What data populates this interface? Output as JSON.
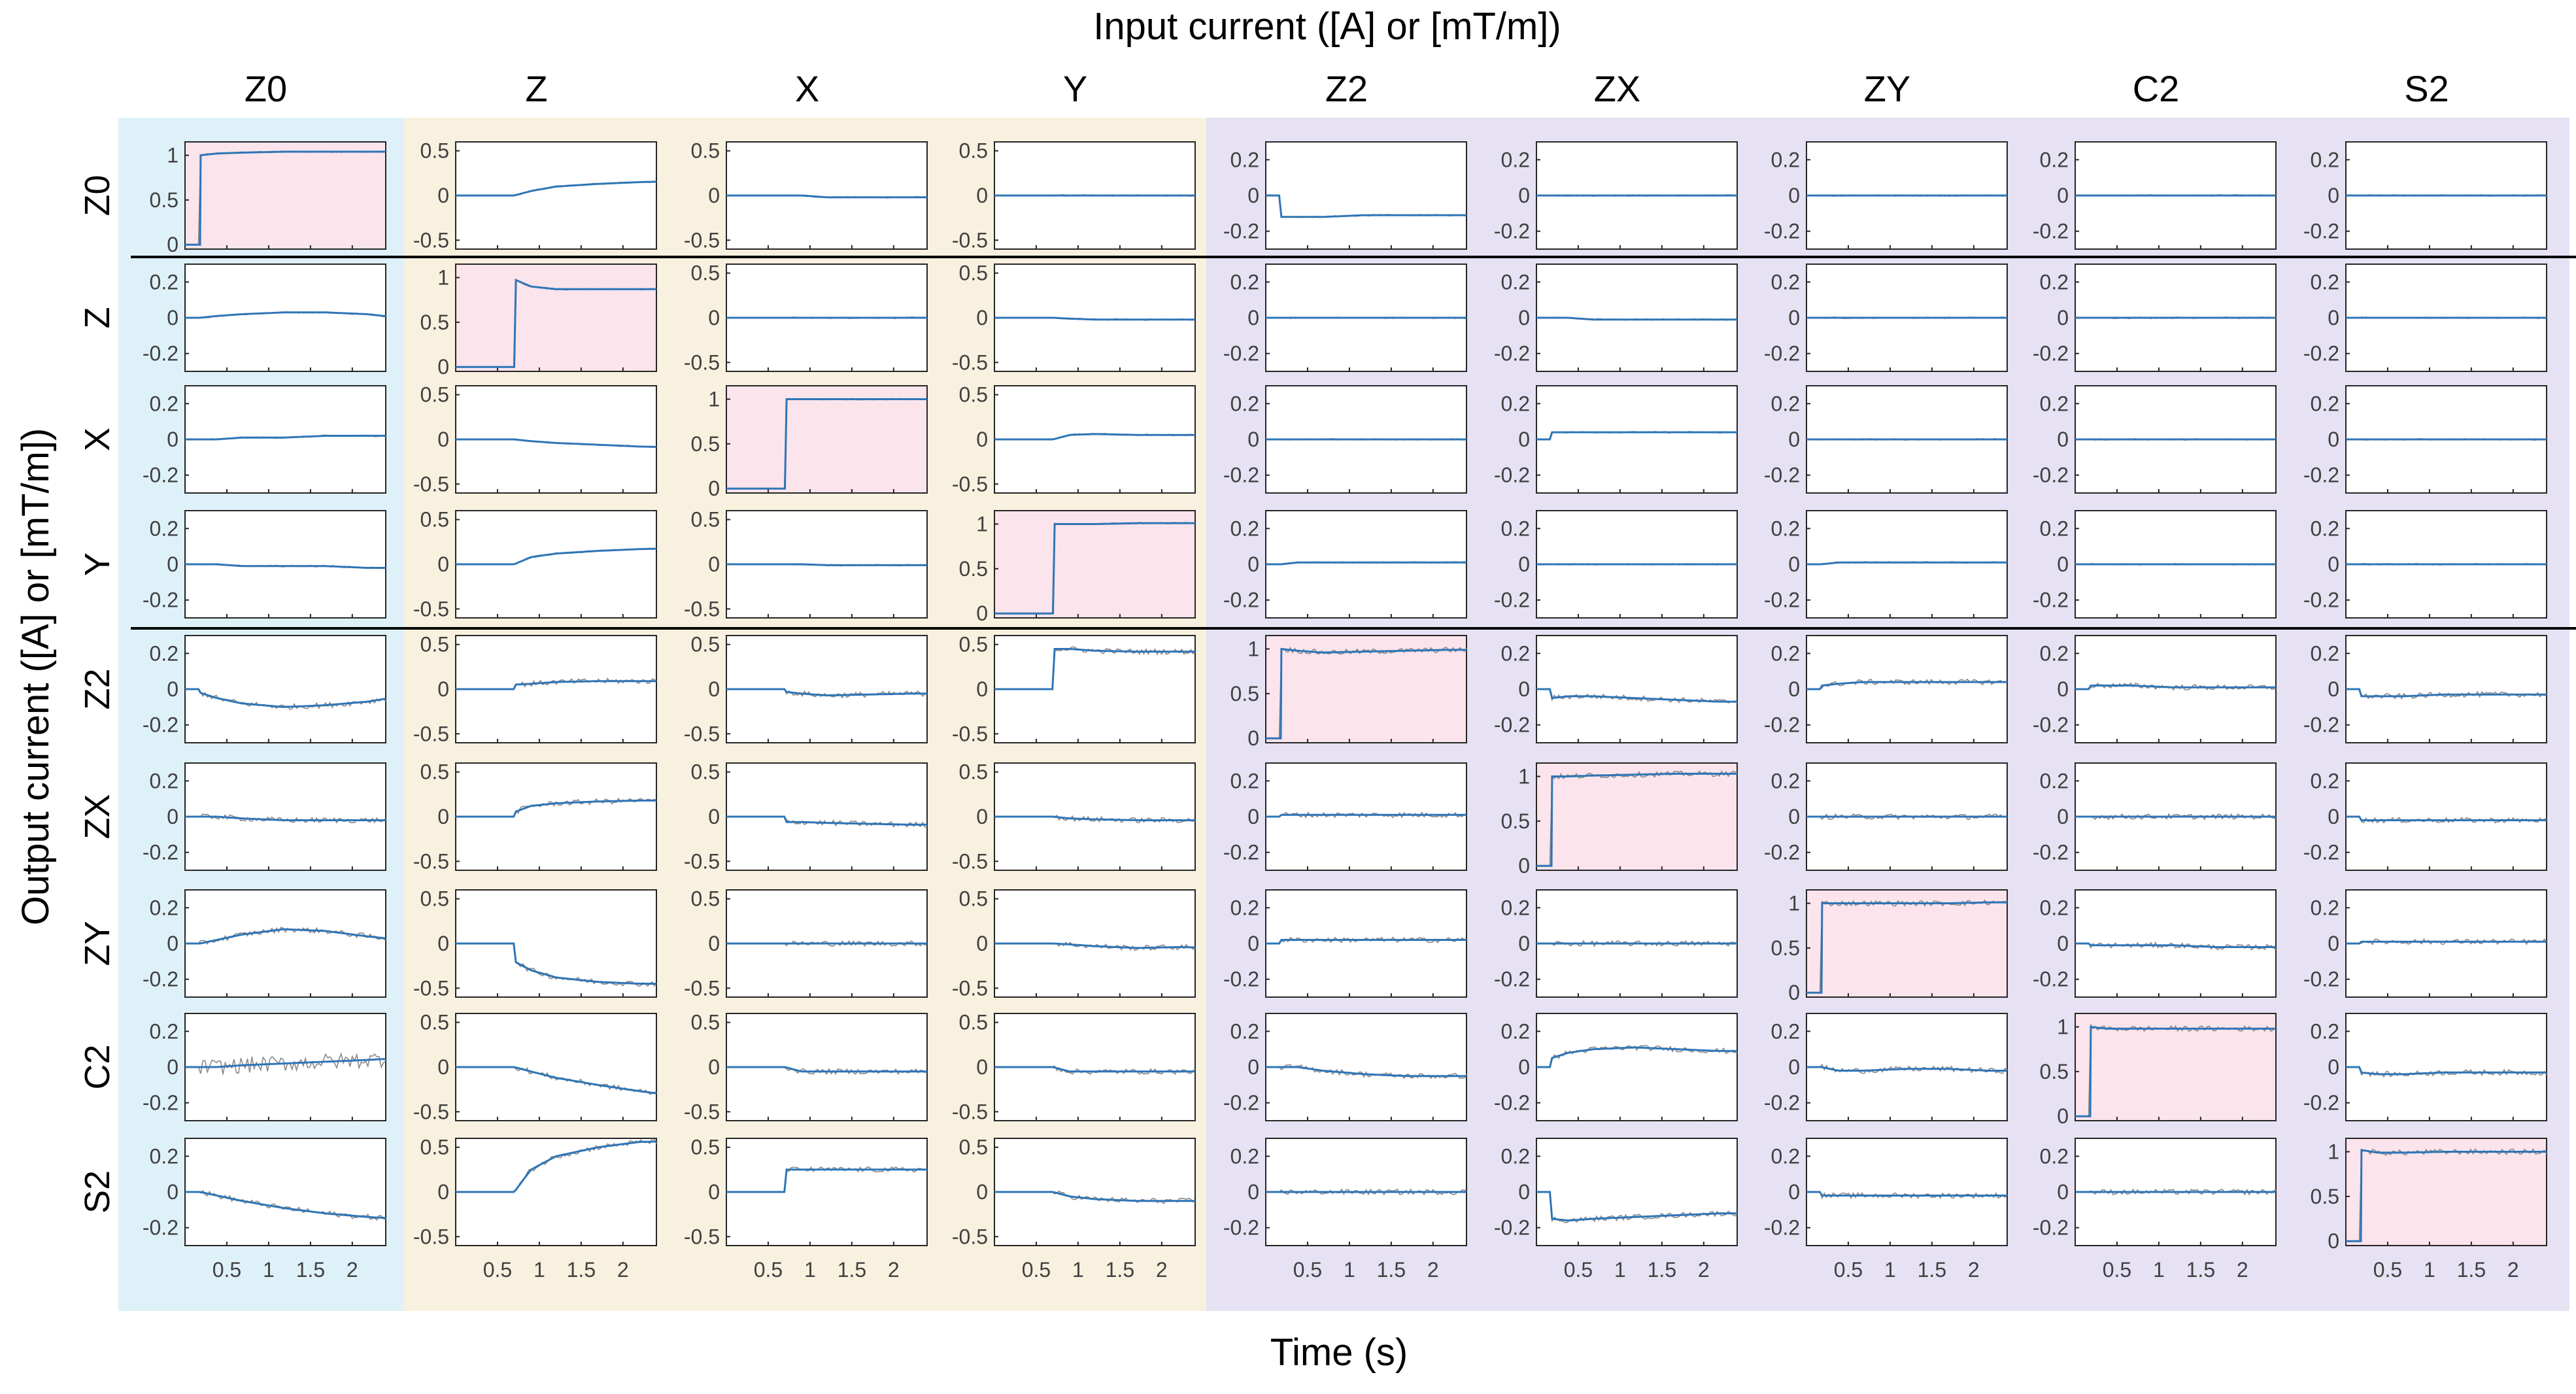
{
  "figure": {
    "title": "Input current ([A] or [mT/m])",
    "xlabel": "Time (s)",
    "ylabel": "Output current  ([A] or [mT/m])"
  },
  "colors": {
    "group_z0": "#dff1f8",
    "group_linear": "#f8f1df",
    "group_second_order": "#e6e2f3",
    "diagonal_fill": "#fbe4ec",
    "fit_line": "#2e75b6",
    "raw_line": "#8a8a8a"
  },
  "chart_data": {
    "type": "line",
    "layout": "9x9 small multiples",
    "columns": [
      "Z0",
      "Z",
      "X",
      "Y",
      "Z2",
      "ZX",
      "ZY",
      "C2",
      "S2"
    ],
    "rows": [
      "Z0",
      "Z",
      "X",
      "Y",
      "Z2",
      "ZX",
      "ZY",
      "C2",
      "S2"
    ],
    "x_ticks": [
      0.5,
      1,
      1.5,
      2
    ],
    "xlim": [
      0,
      2.4
    ],
    "y_ticks": {
      "diagonal": [
        0,
        0.5,
        1
      ],
      "pm0_2": [
        -0.2,
        0,
        0.2
      ],
      "pm0_5": [
        -0.5,
        0,
        0.5
      ]
    },
    "ylim": {
      "diagonal": [
        -0.05,
        1.15
      ],
      "pm0_2": [
        -0.3,
        0.3
      ],
      "pm0_5": [
        -0.6,
        0.6
      ]
    },
    "tick_labels": {
      "x": [
        "0.5",
        "1",
        "1.5",
        "2"
      ],
      "diagonal": [
        "0",
        "0.5",
        "1"
      ],
      "pm0_2": [
        "-0.2",
        "0",
        "0.2"
      ],
      "pm0_5": [
        "-0.5",
        "0",
        "0.5"
      ]
    },
    "step_times": [
      0.18,
      0.7,
      0.7,
      0.7,
      0.18,
      0.18,
      0.18,
      0.18,
      0.18
    ],
    "axis_scale_by_row_col": [
      [
        "diagonal",
        "pm0_5",
        "pm0_5",
        "pm0_5",
        "pm0_2",
        "pm0_2",
        "pm0_2",
        "pm0_2",
        "pm0_2"
      ],
      [
        "pm0_2",
        "diagonal",
        "pm0_5",
        "pm0_5",
        "pm0_2",
        "pm0_2",
        "pm0_2",
        "pm0_2",
        "pm0_2"
      ],
      [
        "pm0_2",
        "pm0_5",
        "diagonal",
        "pm0_5",
        "pm0_2",
        "pm0_2",
        "pm0_2",
        "pm0_2",
        "pm0_2"
      ],
      [
        "pm0_2",
        "pm0_5",
        "pm0_5",
        "diagonal",
        "pm0_2",
        "pm0_2",
        "pm0_2",
        "pm0_2",
        "pm0_2"
      ],
      [
        "pm0_2",
        "pm0_5",
        "pm0_5",
        "pm0_5",
        "diagonal",
        "pm0_2",
        "pm0_2",
        "pm0_2",
        "pm0_2"
      ],
      [
        "pm0_2",
        "pm0_5",
        "pm0_5",
        "pm0_5",
        "pm0_2",
        "diagonal",
        "pm0_2",
        "pm0_2",
        "pm0_2"
      ],
      [
        "pm0_2",
        "pm0_5",
        "pm0_5",
        "pm0_5",
        "pm0_2",
        "pm0_2",
        "diagonal",
        "pm0_2",
        "pm0_2"
      ],
      [
        "pm0_2",
        "pm0_5",
        "pm0_5",
        "pm0_5",
        "pm0_2",
        "pm0_2",
        "pm0_2",
        "diagonal",
        "pm0_2"
      ],
      [
        "pm0_2",
        "pm0_5",
        "pm0_5",
        "pm0_5",
        "pm0_2",
        "pm0_2",
        "pm0_2",
        "pm0_2",
        "diagonal"
      ]
    ],
    "fit_response_points_t": [
      0,
      0.2,
      0.5,
      1.0,
      1.5,
      2.0,
      2.4
    ],
    "fit_response_after_step": [
      [
        [
          1.0,
          1.02,
          1.03,
          1.04,
          1.04,
          1.04,
          1.04
        ],
        [
          0.0,
          0.05,
          0.1,
          0.13,
          0.15,
          0.16,
          0.16
        ],
        [
          0,
          0,
          -0.02,
          -0.02,
          -0.02,
          -0.02,
          -0.02
        ],
        [
          0,
          0,
          0,
          0,
          0,
          0,
          0
        ],
        [
          -0.12,
          -0.12,
          -0.12,
          -0.11,
          -0.11,
          -0.11,
          -0.11
        ],
        [
          0,
          0,
          0,
          0,
          0,
          0,
          0
        ],
        [
          0,
          0,
          0,
          0,
          0,
          0,
          0
        ],
        [
          0,
          0,
          0,
          0,
          0,
          0,
          0
        ],
        [
          0,
          0,
          0,
          0,
          0,
          0,
          0
        ]
      ],
      [
        [
          0,
          0.01,
          0.02,
          0.03,
          0.03,
          0.02,
          0.0
        ],
        [
          0.98,
          0.9,
          0.87,
          0.87,
          0.87,
          0.87,
          0.87
        ],
        [
          0,
          0,
          0,
          0,
          0,
          0,
          0
        ],
        [
          0,
          -0.01,
          -0.02,
          -0.02,
          -0.02,
          -0.02,
          -0.02
        ],
        [
          0,
          0,
          0,
          0,
          0,
          0,
          0
        ],
        [
          0,
          0,
          -0.01,
          -0.01,
          -0.01,
          -0.01,
          -0.01
        ],
        [
          0,
          0,
          0,
          0,
          0,
          0,
          0
        ],
        [
          0,
          0,
          0,
          0,
          0,
          0,
          0
        ],
        [
          0,
          0,
          0,
          0,
          0,
          0,
          0
        ]
      ],
      [
        [
          0,
          0,
          0.01,
          0.01,
          0.02,
          0.02,
          0.02
        ],
        [
          0,
          -0.02,
          -0.04,
          -0.06,
          -0.08,
          -0.09,
          -0.09
        ],
        [
          1.0,
          1.0,
          1.0,
          1.0,
          1.0,
          1.0,
          1.0
        ],
        [
          0,
          0.05,
          0.06,
          0.05,
          0.05,
          0.05,
          0.05
        ],
        [
          0,
          0,
          0,
          0,
          0,
          0,
          0
        ],
        [
          0.04,
          0.04,
          0.04,
          0.04,
          0.04,
          0.04,
          0.04
        ],
        [
          0,
          0,
          0,
          0,
          0,
          0,
          0
        ],
        [
          0,
          0,
          0,
          0,
          0,
          0,
          0
        ],
        [
          0,
          0,
          0,
          0,
          0,
          0,
          0
        ]
      ],
      [
        [
          0,
          0,
          -0.01,
          -0.01,
          -0.01,
          -0.02,
          -0.02
        ],
        [
          0.0,
          0.08,
          0.12,
          0.15,
          0.17,
          0.18,
          0.18
        ],
        [
          0,
          0,
          -0.01,
          -0.01,
          -0.01,
          -0.01,
          -0.01
        ],
        [
          1.0,
          1.0,
          1.0,
          1.01,
          1.01,
          1.01,
          1.01
        ],
        [
          0,
          0.01,
          0.01,
          0.01,
          0.01,
          0.01,
          0.01
        ],
        [
          0,
          0,
          0,
          0,
          0,
          0,
          0
        ],
        [
          0,
          0.01,
          0.01,
          0.01,
          0.01,
          0.01,
          0.01
        ],
        [
          0,
          0,
          0,
          0,
          0,
          0,
          0
        ],
        [
          0,
          0,
          0,
          0,
          0,
          0,
          0
        ]
      ],
      [
        [
          -0.02,
          -0.05,
          -0.08,
          -0.1,
          -0.09,
          -0.07,
          -0.04
        ],
        [
          0.05,
          0.06,
          0.08,
          0.09,
          0.09,
          0.09,
          0.09
        ],
        [
          -0.03,
          -0.05,
          -0.07,
          -0.06,
          -0.05,
          -0.05,
          -0.05
        ],
        [
          0.45,
          0.45,
          0.43,
          0.42,
          0.42,
          0.42,
          0.42
        ],
        [
          1.0,
          0.98,
          0.96,
          0.97,
          0.98,
          0.99,
          0.99
        ],
        [
          -0.05,
          -0.04,
          -0.04,
          -0.05,
          -0.06,
          -0.07,
          -0.07
        ],
        [
          0.02,
          0.03,
          0.04,
          0.04,
          0.04,
          0.04,
          0.04
        ],
        [
          0.02,
          0.02,
          0.02,
          0.01,
          0.01,
          0.01,
          0.01
        ],
        [
          -0.04,
          -0.04,
          -0.04,
          -0.03,
          -0.03,
          -0.03,
          -0.03
        ]
      ],
      [
        [
          0,
          0,
          -0.01,
          -0.02,
          -0.02,
          -0.02,
          -0.02
        ],
        [
          0.05,
          0.12,
          0.15,
          0.17,
          0.18,
          0.18,
          0.18
        ],
        [
          -0.06,
          -0.06,
          -0.07,
          -0.08,
          -0.09,
          -0.09,
          -0.09
        ],
        [
          0,
          -0.02,
          -0.03,
          -0.04,
          -0.04,
          -0.04,
          -0.04
        ],
        [
          0.01,
          0.01,
          0.01,
          0.01,
          0.01,
          0.01,
          0.01
        ],
        [
          1.0,
          1.0,
          1.01,
          1.02,
          1.03,
          1.03,
          1.03
        ],
        [
          0,
          0,
          0,
          0,
          0,
          0,
          0
        ],
        [
          0,
          0,
          0,
          0,
          0,
          0,
          0
        ],
        [
          -0.02,
          -0.02,
          -0.02,
          -0.02,
          -0.02,
          -0.02,
          -0.02
        ]
      ],
      [
        [
          0.0,
          0.02,
          0.05,
          0.08,
          0.07,
          0.04,
          0.02
        ],
        [
          -0.2,
          -0.3,
          -0.38,
          -0.43,
          -0.45,
          -0.45,
          -0.45
        ],
        [
          0,
          0,
          0,
          0,
          0,
          0,
          0
        ],
        [
          0,
          -0.01,
          -0.03,
          -0.05,
          -0.04,
          -0.05,
          -0.05
        ],
        [
          0.02,
          0.02,
          0.02,
          0.02,
          0.02,
          0.02,
          0.02
        ],
        [
          0,
          0,
          0,
          0,
          0,
          0,
          0
        ],
        [
          1.0,
          1.0,
          1.0,
          1.0,
          1.0,
          1.01,
          1.01
        ],
        [
          -0.01,
          -0.01,
          -0.01,
          -0.01,
          -0.02,
          -0.02,
          -0.02
        ],
        [
          0.01,
          0.01,
          0.01,
          0.01,
          0.01,
          0.01,
          0.01
        ]
      ],
      [
        [
          0,
          0,
          0.01,
          0.02,
          0.03,
          0.04,
          0.05
        ],
        [
          0,
          -0.05,
          -0.12,
          -0.2,
          -0.27,
          -0.33,
          -0.35
        ],
        [
          0,
          -0.05,
          -0.05,
          -0.05,
          -0.05,
          -0.05,
          -0.05
        ],
        [
          0,
          -0.05,
          -0.05,
          -0.05,
          -0.05,
          -0.05,
          -0.05
        ],
        [
          0,
          0,
          -0.02,
          -0.04,
          -0.05,
          -0.05,
          -0.05
        ],
        [
          0.05,
          0.08,
          0.1,
          0.11,
          0.1,
          0.09,
          0.09
        ],
        [
          0,
          -0.02,
          -0.02,
          -0.01,
          -0.01,
          -0.02,
          -0.02
        ],
        [
          1.0,
          0.98,
          0.98,
          0.98,
          0.98,
          0.98,
          0.98
        ],
        [
          -0.03,
          -0.04,
          -0.04,
          -0.03,
          -0.03,
          -0.03,
          -0.03
        ]
      ],
      [
        [
          0,
          -0.02,
          -0.05,
          -0.09,
          -0.12,
          -0.14,
          -0.15
        ],
        [
          0,
          0.25,
          0.4,
          0.5,
          0.56,
          0.57,
          0.57
        ],
        [
          0.25,
          0.25,
          0.25,
          0.25,
          0.25,
          0.25,
          0.25
        ],
        [
          0,
          -0.05,
          -0.08,
          -0.1,
          -0.1,
          -0.1,
          -0.11
        ],
        [
          0,
          0,
          0,
          0,
          0,
          0,
          0
        ],
        [
          -0.15,
          -0.16,
          -0.15,
          -0.14,
          -0.13,
          -0.12,
          -0.12
        ],
        [
          -0.02,
          -0.02,
          -0.02,
          -0.02,
          -0.02,
          -0.02,
          -0.02
        ],
        [
          0,
          0,
          0,
          0,
          0,
          0,
          0
        ],
        [
          1.02,
          0.99,
          0.99,
          1.0,
          1.0,
          1.0,
          1.0
        ]
      ]
    ]
  }
}
